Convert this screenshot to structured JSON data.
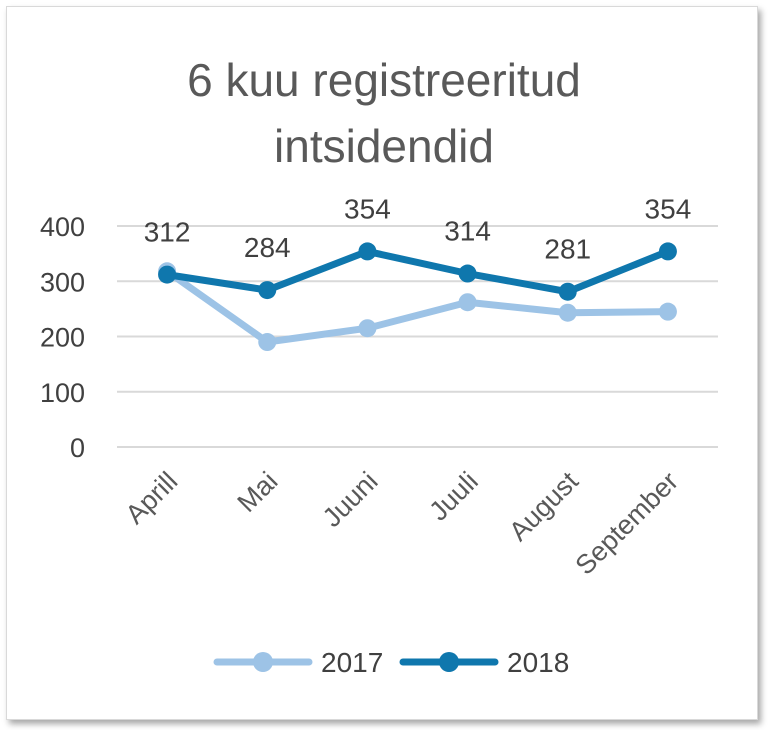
{
  "chart_data": {
    "type": "line",
    "title_lines": [
      "6 kuu registreeritud",
      "intsidendid"
    ],
    "categories": [
      "Aprill",
      "Mai",
      "Juuni",
      "Juuli",
      "August",
      "September"
    ],
    "yticks": [
      "0",
      "100",
      "200",
      "300",
      "400"
    ],
    "ylim": [
      0,
      400
    ],
    "grid": true,
    "legend_position": "bottom",
    "series": [
      {
        "name": "2017",
        "color": "#9dc3e6",
        "values": [
          318,
          190,
          215,
          262,
          243,
          245
        ],
        "show_labels": false
      },
      {
        "name": "2018",
        "color": "#0f77ad",
        "values": [
          312,
          284,
          354,
          314,
          281,
          354
        ],
        "show_labels": true
      }
    ]
  }
}
